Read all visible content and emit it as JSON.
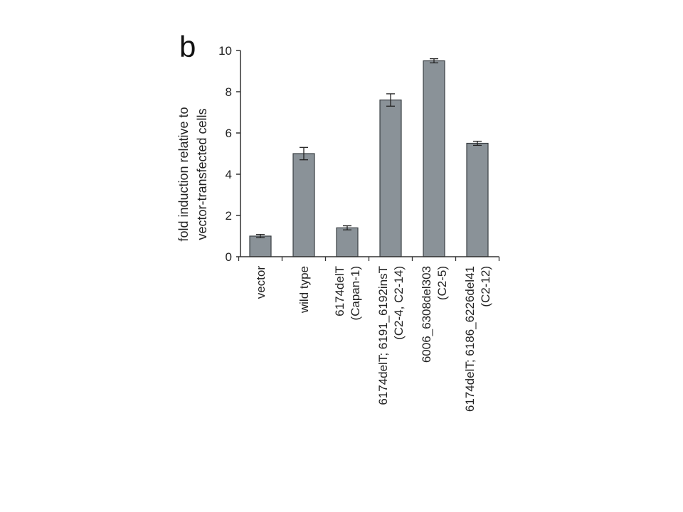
{
  "chart_data": {
    "type": "bar",
    "panel_label": "b",
    "ylabel": [
      "fold induction relative to",
      "vector-transfected cells"
    ],
    "ylim": [
      0,
      10
    ],
    "yticks": [
      0,
      2,
      4,
      6,
      8,
      10
    ],
    "categories": [
      [
        "vector"
      ],
      [
        "wild type"
      ],
      [
        "6174delT",
        "(Capan-1)"
      ],
      [
        "6174delT; 6191_6192insT",
        "(C2-4, C2-14)"
      ],
      [
        "6006_6308del303",
        "(C2-5)"
      ],
      [
        "6174delT; 6186_6226del41",
        "(C2-12)"
      ]
    ],
    "values": [
      1.0,
      5.0,
      1.4,
      7.6,
      9.5,
      5.5
    ],
    "errors": [
      0.08,
      0.3,
      0.1,
      0.3,
      0.1,
      0.1
    ],
    "bar_color": "#8a9298",
    "grid": false,
    "legend": "none"
  }
}
